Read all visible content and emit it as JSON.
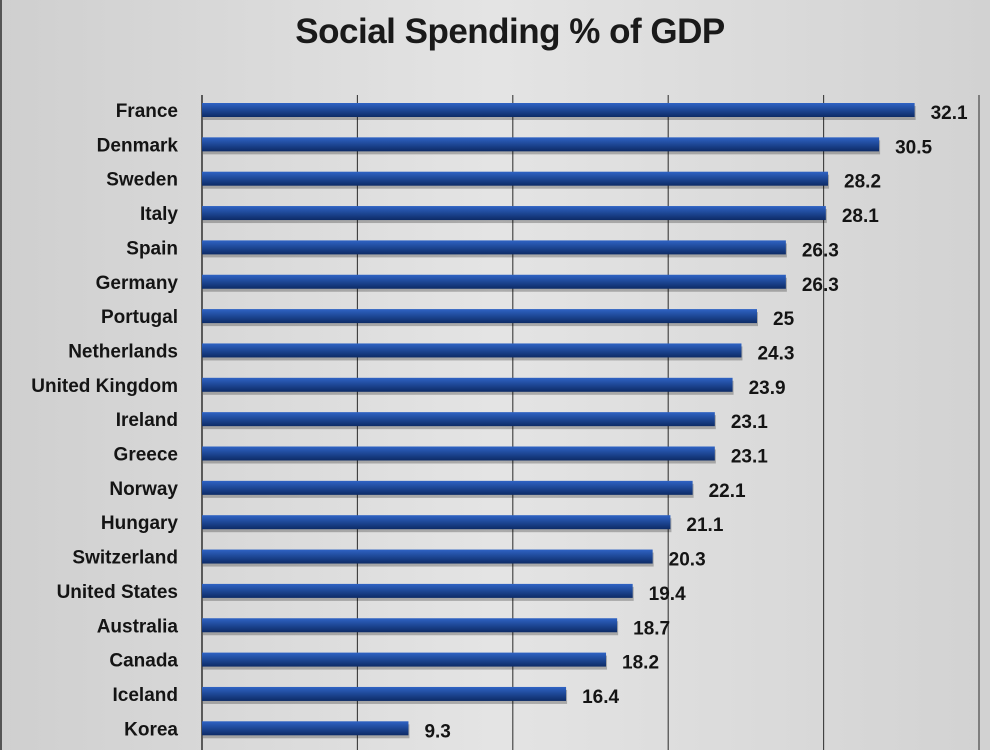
{
  "colors": {
    "bar": "#1f4a9a",
    "bar_dark": "#0d2b66",
    "grid": "#3a3a3a"
  },
  "chart_data": {
    "type": "bar",
    "orientation": "horizontal",
    "title": "Social Spending % of GDP",
    "xlabel": "",
    "ylabel": "",
    "xlim": [
      0,
      35
    ],
    "grid": true,
    "legend": "none",
    "categories": [
      "France",
      "Denmark",
      "Sweden",
      "Italy",
      "Spain",
      "Germany",
      "Portugal",
      "Netherlands",
      "United Kingdom",
      "Ireland",
      "Greece",
      "Norway",
      "Hungary",
      "Switzerland",
      "United States",
      "Australia",
      "Canada",
      "Iceland",
      "Korea"
    ],
    "values": [
      32.1,
      30.5,
      28.2,
      28.1,
      26.3,
      26.3,
      25,
      24.3,
      23.9,
      23.1,
      23.1,
      22.1,
      21.1,
      20.3,
      19.4,
      18.7,
      18.2,
      16.4,
      9.3
    ],
    "value_labels": [
      "32.1",
      "30.5",
      "28.2",
      "28.1",
      "26.3",
      "26.3",
      "25",
      "24.3",
      "23.9",
      "23.1",
      "23.1",
      "22.1",
      "21.1",
      "20.3",
      "19.4",
      "18.7",
      "18.2",
      "16.4",
      "9.3"
    ]
  }
}
